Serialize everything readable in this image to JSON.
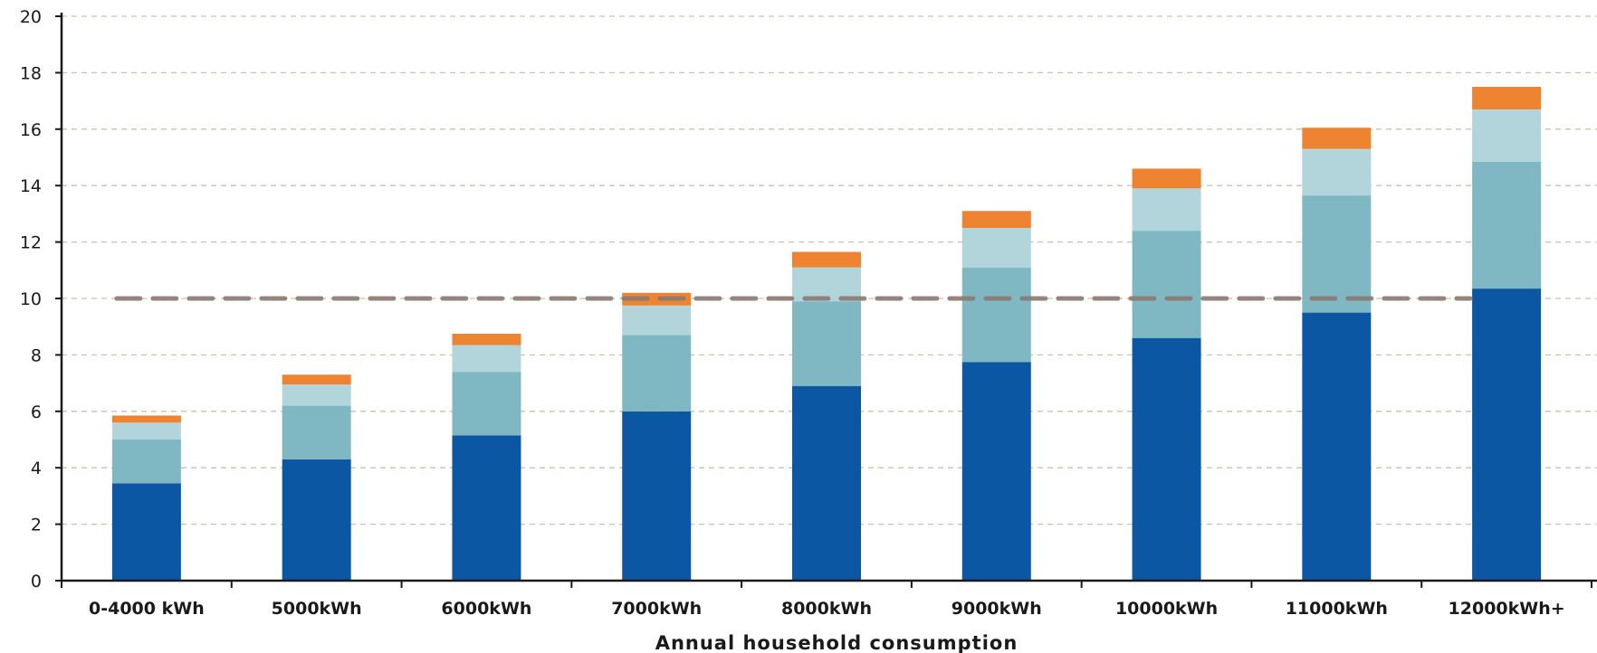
{
  "chart_data": {
    "type": "bar",
    "stacked": true,
    "categories": [
      "0-4000 kWh",
      "5000kWh",
      "6000kWh",
      "7000kWh",
      "8000kWh",
      "9000kWh",
      "10000kWh",
      "11000kWh",
      "12000kWh+"
    ],
    "series": [
      {
        "color": "#0b57a4",
        "values": [
          3.45,
          4.3,
          5.15,
          6.0,
          6.9,
          7.75,
          8.6,
          9.5,
          10.35
        ]
      },
      {
        "color": "#7fb8c3",
        "values": [
          1.55,
          1.9,
          2.25,
          2.7,
          3.0,
          3.35,
          3.8,
          4.15,
          4.5
        ]
      },
      {
        "color": "#b2d5dc",
        "values": [
          0.6,
          0.75,
          0.95,
          1.05,
          1.2,
          1.4,
          1.5,
          1.65,
          1.85
        ]
      },
      {
        "color": "#ee8331",
        "values": [
          0.25,
          0.35,
          0.4,
          0.45,
          0.55,
          0.6,
          0.7,
          0.75,
          0.8
        ]
      }
    ],
    "reference_line": {
      "value": 10,
      "color": "#8a7b72",
      "style": "dashed"
    },
    "xlabel": "Annual household consumption",
    "ylabel": "",
    "ylim": [
      0,
      20
    ],
    "yticks": [
      0,
      2,
      4,
      6,
      8,
      10,
      12,
      14,
      16,
      18,
      20
    ],
    "grid": true,
    "legend": "none"
  }
}
